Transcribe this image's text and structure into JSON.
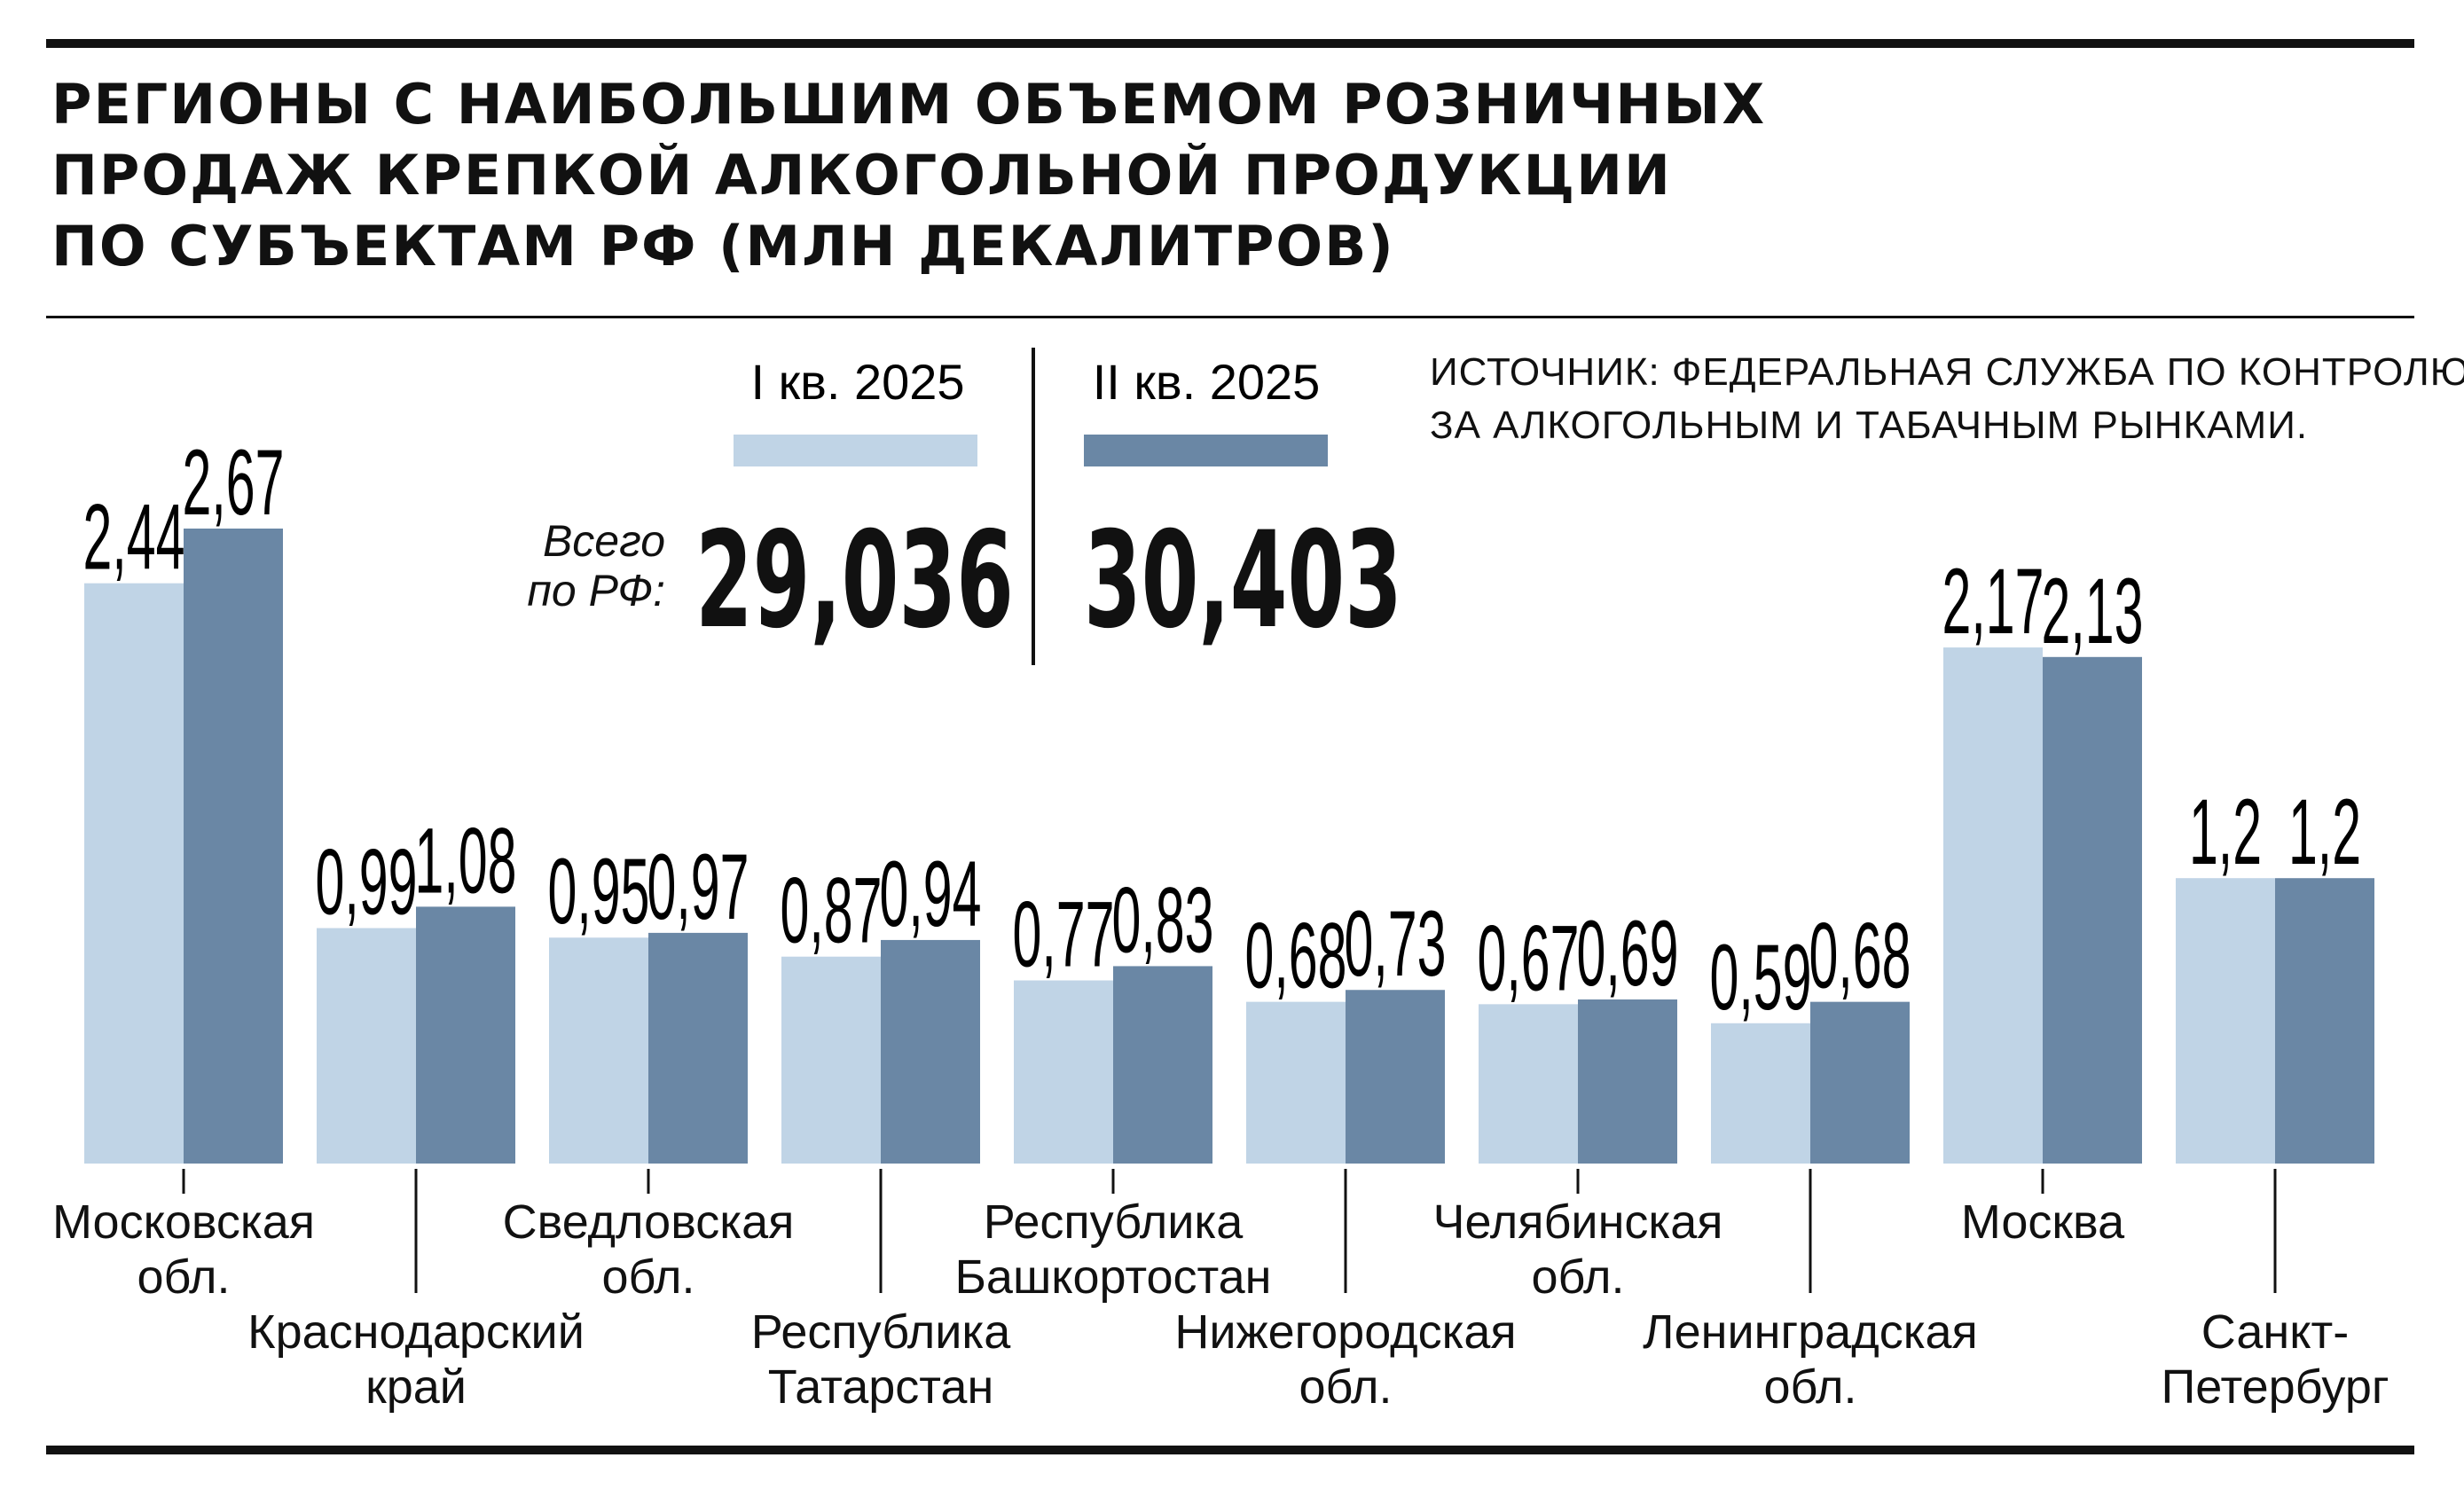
{
  "title_lines": [
    "РЕГИОНЫ С НАИБОЛЬШИМ ОБЪЕМОМ РОЗНИЧНЫХ",
    "ПРОДАЖ КРЕПКОЙ АЛКОГОЛЬНОЙ ПРОДУКЦИИ",
    "ПО СУБЪЕКТАМ РФ (МЛН ДЕКАЛИТРОВ)"
  ],
  "source_lines": [
    "ИСТОЧНИК: ФЕДЕРАЛЬНАЯ СЛУЖБА ПО КОНТРОЛЮ",
    "ЗА АЛКОГОЛЬНЫМ И ТАБАЧНЫМ РЫНКАМИ."
  ],
  "totals": {
    "caption_lines": [
      "Всего",
      "по РФ:"
    ],
    "q1": "29,036",
    "q2": "30,403"
  },
  "colors": {
    "q1": "#c0d4e6",
    "q2": "#6a87a5",
    "text": "#111111"
  },
  "chart_data": {
    "type": "bar",
    "title": "РЕГИОНЫ С НАИБОЛЬШИМ ОБЪЕМОМ РОЗНИЧНЫХ ПРОДАЖ КРЕПКОЙ АЛКОГОЛЬНОЙ ПРОДУКЦИИ ПО СУБЪЕКТАМ РФ (МЛН ДЕКАЛИТРОВ)",
    "legend_position": "top",
    "grid": false,
    "ylim": [
      0,
      2.67
    ],
    "categories": [
      [
        "Московская",
        "обл."
      ],
      [
        "Краснодарский",
        "край"
      ],
      [
        "Сведловская",
        "обл."
      ],
      [
        "Республика",
        "Татарстан"
      ],
      [
        "Республика",
        "Башкортостан"
      ],
      [
        "Нижегородская",
        "обл."
      ],
      [
        "Челябинская",
        "обл."
      ],
      [
        "Ленинградская",
        "обл."
      ],
      [
        "Москва"
      ],
      [
        "Санкт-",
        "Петербург"
      ]
    ],
    "series": [
      {
        "name": "I кв. 2025",
        "values": [
          2.44,
          0.99,
          0.95,
          0.87,
          0.77,
          0.68,
          0.67,
          0.59,
          2.17,
          1.2
        ],
        "labels": [
          "2,44",
          "0,99",
          "0,95",
          "0,87",
          "0,77",
          "0,68",
          "0,67",
          "0,59",
          "2,17",
          "1,2"
        ]
      },
      {
        "name": "II кв. 2025",
        "values": [
          2.67,
          1.08,
          0.97,
          0.94,
          0.83,
          0.73,
          0.69,
          0.68,
          2.13,
          1.2
        ],
        "labels": [
          "2,67",
          "1,08",
          "0,97",
          "0,94",
          "0,83",
          "0,73",
          "0,69",
          "0,68",
          "2,13",
          "1,2"
        ]
      }
    ]
  }
}
